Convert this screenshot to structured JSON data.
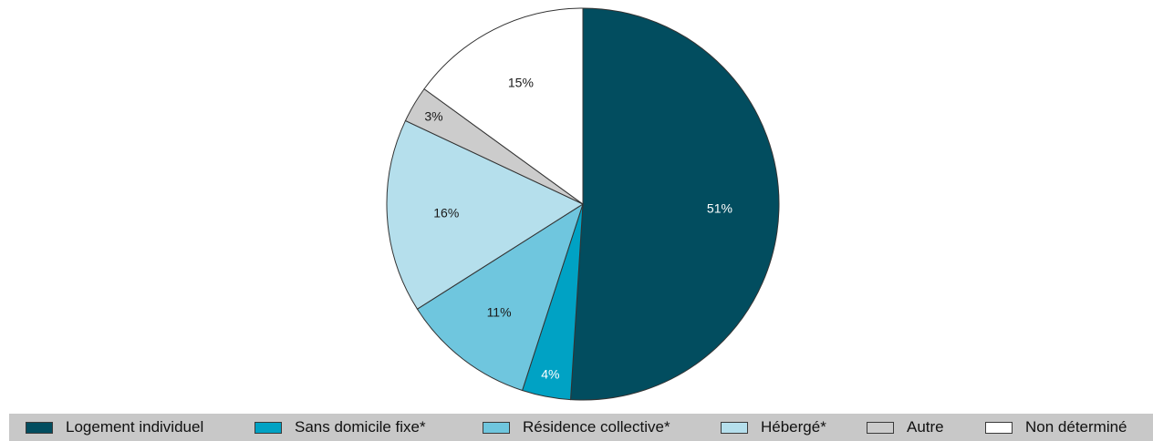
{
  "chart_data": {
    "type": "pie",
    "title": "",
    "legend_position": "bottom",
    "start_angle_deg": 0,
    "direction": "clockwise",
    "slices": [
      {
        "label": "Logement individuel",
        "value": 51,
        "display": "51%",
        "color": "#024d5f",
        "label_color": "#ffffff"
      },
      {
        "label": "Sans domicile fixe*",
        "value": 4,
        "display": "4%",
        "color": "#00a2c4",
        "label_color": "#ffffff"
      },
      {
        "label": "Résidence collective*",
        "value": 11,
        "display": "11%",
        "color": "#6fc6de",
        "label_color": "#1a1a1a"
      },
      {
        "label": "Hébergé*",
        "value": 16,
        "display": "16%",
        "color": "#b5dfec",
        "label_color": "#1a1a1a"
      },
      {
        "label": "Autre",
        "value": 3,
        "display": "3%",
        "color": "#cccccc",
        "label_color": "#1a1a1a"
      },
      {
        "label": "Non déterminé",
        "value": 15,
        "display": "15%",
        "color": "#ffffff",
        "label_color": "#1a1a1a"
      }
    ]
  }
}
